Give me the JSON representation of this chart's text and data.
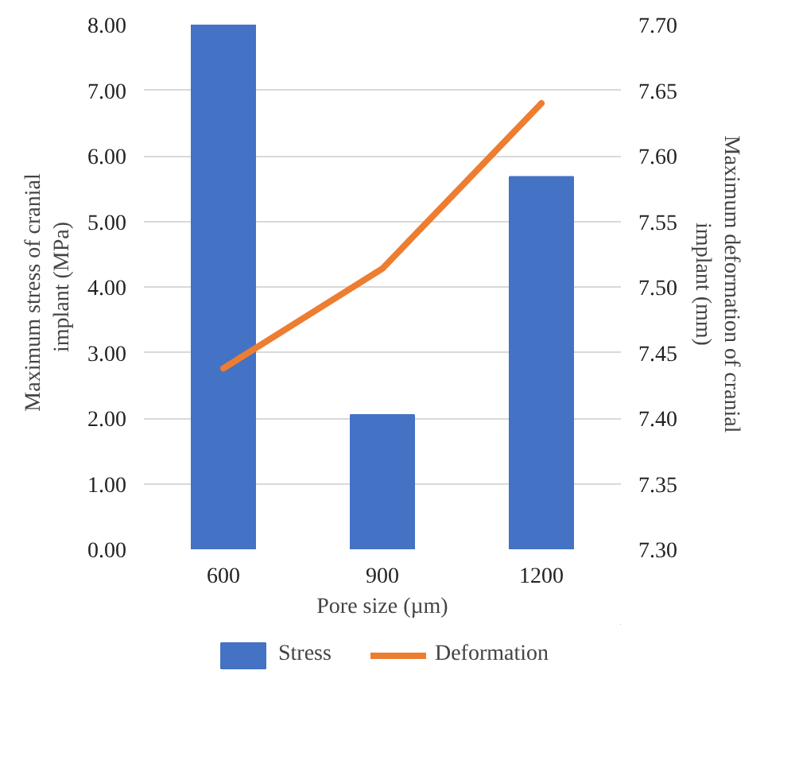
{
  "chart_data": {
    "type": "bar",
    "xlabel": "Pore size (µm)",
    "ylabel": "Maximum  stress of cranial  implant (MPa)",
    "y2label": "Maximum  deformation of cranial implant  (mm)",
    "categories": [
      "600",
      "900",
      "1200"
    ],
    "series": [
      {
        "name": "Stress",
        "type": "bar",
        "color": "#4472c4",
        "values": [
          8.0,
          2.05,
          5.68
        ]
      },
      {
        "name": "Deformation",
        "type": "line",
        "axis": "y2",
        "color": "#ed7d31",
        "values": [
          7.438,
          7.514,
          7.64
        ]
      }
    ],
    "ylim": [
      0,
      8
    ],
    "yticks": [
      {
        "value": 0,
        "label": "0.00"
      },
      {
        "value": 1,
        "label": "1.00"
      },
      {
        "value": 2,
        "label": "2.00"
      },
      {
        "value": 3,
        "label": "3.00"
      },
      {
        "value": 4,
        "label": "4.00"
      },
      {
        "value": 5,
        "label": "5.00"
      },
      {
        "value": 6,
        "label": "6.00"
      },
      {
        "value": 7,
        "label": "7.00"
      },
      {
        "value": 8,
        "label": "8.00"
      }
    ],
    "y2lim": [
      7.3,
      7.7
    ],
    "y2ticks": [
      {
        "value": 7.3,
        "label": "7.30"
      },
      {
        "value": 7.35,
        "label": "7.35"
      },
      {
        "value": 7.4,
        "label": "7.40"
      },
      {
        "value": 7.45,
        "label": "7.45"
      },
      {
        "value": 7.5,
        "label": "7.50"
      },
      {
        "value": 7.55,
        "label": "7.55"
      },
      {
        "value": 7.6,
        "label": "7.60"
      },
      {
        "value": 7.65,
        "label": "7.65"
      },
      {
        "value": 7.7,
        "label": "7.70"
      }
    ],
    "grid": "y",
    "legend": "bottom"
  }
}
